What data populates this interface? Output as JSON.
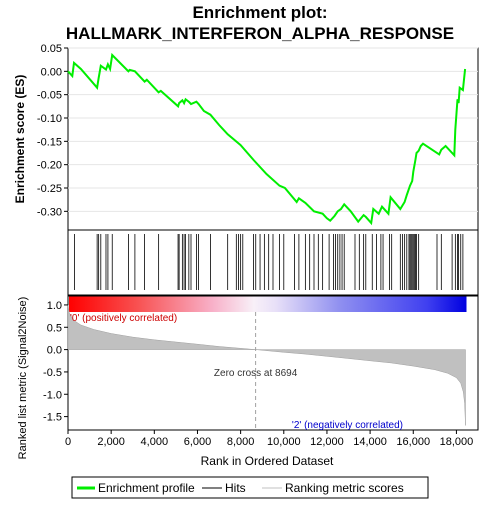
{
  "chart_data": {
    "type": "line",
    "title_line1": "Enrichment plot:",
    "title_line2": "HALLMARK_INTERFERON_ALPHA_RESPONSE",
    "es_panel": {
      "ylabel": "Enrichment score (ES)",
      "ylim": [
        -0.34,
        0.05
      ],
      "yticks": [
        0.05,
        0.0,
        -0.05,
        -0.1,
        -0.15,
        -0.2,
        -0.25,
        -0.3
      ],
      "ytick_labels": [
        "0.05",
        "0.00",
        "-0.05",
        "-0.10",
        "-0.15",
        "-0.20",
        "-0.25",
        "-0.30"
      ],
      "line_color": "#00ee00",
      "series": [
        {
          "x": 0,
          "y": 0.0
        },
        {
          "x": 200,
          "y": -0.01
        },
        {
          "x": 280,
          "y": 0.018
        },
        {
          "x": 600,
          "y": 0.005
        },
        {
          "x": 1350,
          "y": -0.035
        },
        {
          "x": 1420,
          "y": -0.015
        },
        {
          "x": 1520,
          "y": 0.012
        },
        {
          "x": 1760,
          "y": 0.004
        },
        {
          "x": 1850,
          "y": 0.015
        },
        {
          "x": 1950,
          "y": 0.005
        },
        {
          "x": 2050,
          "y": 0.035
        },
        {
          "x": 2800,
          "y": 0.0
        },
        {
          "x": 2860,
          "y": 0.003
        },
        {
          "x": 3100,
          "y": 0.0
        },
        {
          "x": 3550,
          "y": -0.022
        },
        {
          "x": 3650,
          "y": -0.018
        },
        {
          "x": 4200,
          "y": -0.045
        },
        {
          "x": 4300,
          "y": -0.042
        },
        {
          "x": 5100,
          "y": -0.075
        },
        {
          "x": 5150,
          "y": -0.068
        },
        {
          "x": 5300,
          "y": -0.062
        },
        {
          "x": 5380,
          "y": -0.068
        },
        {
          "x": 5450,
          "y": -0.06
        },
        {
          "x": 5600,
          "y": -0.065
        },
        {
          "x": 5700,
          "y": -0.07
        },
        {
          "x": 5950,
          "y": -0.065
        },
        {
          "x": 6050,
          "y": -0.07
        },
        {
          "x": 6300,
          "y": -0.085
        },
        {
          "x": 6600,
          "y": -0.093
        },
        {
          "x": 7000,
          "y": -0.115
        },
        {
          "x": 7400,
          "y": -0.135
        },
        {
          "x": 8000,
          "y": -0.158
        },
        {
          "x": 8600,
          "y": -0.19
        },
        {
          "x": 9200,
          "y": -0.22
        },
        {
          "x": 9800,
          "y": -0.245
        },
        {
          "x": 10050,
          "y": -0.25
        },
        {
          "x": 10600,
          "y": -0.28
        },
        {
          "x": 10700,
          "y": -0.272
        },
        {
          "x": 11000,
          "y": -0.282
        },
        {
          "x": 11400,
          "y": -0.3
        },
        {
          "x": 11800,
          "y": -0.305
        },
        {
          "x": 12000,
          "y": -0.315
        },
        {
          "x": 12150,
          "y": -0.32
        },
        {
          "x": 12350,
          "y": -0.31
        },
        {
          "x": 12500,
          "y": -0.3
        },
        {
          "x": 12650,
          "y": -0.295
        },
        {
          "x": 12800,
          "y": -0.285
        },
        {
          "x": 13100,
          "y": -0.3
        },
        {
          "x": 13450,
          "y": -0.322
        },
        {
          "x": 13700,
          "y": -0.308
        },
        {
          "x": 13800,
          "y": -0.312
        },
        {
          "x": 14050,
          "y": -0.325
        },
        {
          "x": 14150,
          "y": -0.295
        },
        {
          "x": 14400,
          "y": -0.305
        },
        {
          "x": 14550,
          "y": -0.29
        },
        {
          "x": 14850,
          "y": -0.305
        },
        {
          "x": 14950,
          "y": -0.27
        },
        {
          "x": 15400,
          "y": -0.295
        },
        {
          "x": 15600,
          "y": -0.28
        },
        {
          "x": 15700,
          "y": -0.265
        },
        {
          "x": 15850,
          "y": -0.245
        },
        {
          "x": 15950,
          "y": -0.235
        },
        {
          "x": 16000,
          "y": -0.215
        },
        {
          "x": 16100,
          "y": -0.19
        },
        {
          "x": 16150,
          "y": -0.175
        },
        {
          "x": 16250,
          "y": -0.17
        },
        {
          "x": 16350,
          "y": -0.16
        },
        {
          "x": 16450,
          "y": -0.155
        },
        {
          "x": 17200,
          "y": -0.178
        },
        {
          "x": 17300,
          "y": -0.168
        },
        {
          "x": 17500,
          "y": -0.16
        },
        {
          "x": 17900,
          "y": -0.18
        },
        {
          "x": 17950,
          "y": -0.125
        },
        {
          "x": 18050,
          "y": -0.06
        },
        {
          "x": 18100,
          "y": -0.068
        },
        {
          "x": 18150,
          "y": -0.035
        },
        {
          "x": 18300,
          "y": -0.04
        },
        {
          "x": 18400,
          "y": 0.005
        }
      ]
    },
    "hits": [
      300,
      1350,
      1420,
      1520,
      1760,
      1850,
      2050,
      2800,
      3100,
      3550,
      4200,
      5100,
      5150,
      5300,
      5380,
      5450,
      5600,
      5700,
      5950,
      6050,
      6600,
      7400,
      7800,
      7900,
      8000,
      8100,
      8600,
      8700,
      8900,
      9100,
      9300,
      9500,
      9800,
      10000,
      10500,
      10700,
      11000,
      11200,
      11400,
      11600,
      11800,
      12100,
      12300,
      12400,
      12500,
      12600,
      12700,
      12800,
      13300,
      13500,
      13700,
      13800,
      14100,
      14300,
      14500,
      14600,
      14900,
      15000,
      15400,
      15500,
      15600,
      15700,
      15800,
      15850,
      15900,
      15950,
      16000,
      16050,
      16100,
      16150,
      16250,
      17100,
      17300,
      17800,
      17950,
      18050,
      18100,
      18200,
      18300
    ],
    "rank_panel": {
      "ylabel": "Ranked list metric (Signal2Noise)",
      "ylim": [
        -1.8,
        1.2
      ],
      "yticks": [
        1.0,
        0.5,
        0.0,
        -0.5,
        -1.0,
        -1.5
      ],
      "ytick_labels": [
        "1.0",
        "0.5",
        "0.0",
        "-0.5",
        "-1.0",
        "-1.5"
      ],
      "metric_profile": [
        {
          "x": 0,
          "y": 1.0
        },
        {
          "x": 60,
          "y": 0.82
        },
        {
          "x": 250,
          "y": 0.66
        },
        {
          "x": 600,
          "y": 0.55
        },
        {
          "x": 1200,
          "y": 0.45
        },
        {
          "x": 2000,
          "y": 0.36
        },
        {
          "x": 3000,
          "y": 0.28
        },
        {
          "x": 4000,
          "y": 0.22
        },
        {
          "x": 5000,
          "y": 0.17
        },
        {
          "x": 6000,
          "y": 0.12
        },
        {
          "x": 7000,
          "y": 0.07
        },
        {
          "x": 8000,
          "y": 0.03
        },
        {
          "x": 8694,
          "y": 0.0
        },
        {
          "x": 10000,
          "y": -0.06
        },
        {
          "x": 11000,
          "y": -0.1
        },
        {
          "x": 12000,
          "y": -0.15
        },
        {
          "x": 13000,
          "y": -0.2
        },
        {
          "x": 14000,
          "y": -0.25
        },
        {
          "x": 15000,
          "y": -0.3
        },
        {
          "x": 16000,
          "y": -0.37
        },
        {
          "x": 17000,
          "y": -0.45
        },
        {
          "x": 17600,
          "y": -0.53
        },
        {
          "x": 18000,
          "y": -0.63
        },
        {
          "x": 18200,
          "y": -0.75
        },
        {
          "x": 18320,
          "y": -0.95
        },
        {
          "x": 18380,
          "y": -1.2
        },
        {
          "x": 18420,
          "y": -1.7
        }
      ],
      "zero_cross_label": "Zero cross at 8694",
      "zero_cross_x": 8694,
      "positive_label": "'0' (positively correlated)",
      "negative_label": "'2' (negatively correlated)"
    },
    "xaxis": {
      "xlabel": "Rank in Ordered Dataset",
      "xlim": [
        0,
        19000
      ],
      "xmax_rank": 18420,
      "xticks": [
        0,
        2000,
        4000,
        6000,
        8000,
        10000,
        12000,
        14000,
        16000,
        18000
      ],
      "xtick_labels": [
        "0",
        "2,000",
        "4,000",
        "6,000",
        "8,000",
        "10,000",
        "12,000",
        "14,000",
        "16,000",
        "18,000"
      ]
    },
    "legend": [
      {
        "label": "Enrichment profile",
        "color": "#00ee00",
        "kind": "thick-line"
      },
      {
        "label": "Hits",
        "color": "#000000",
        "kind": "thin-line"
      },
      {
        "label": "Ranking metric scores",
        "color": "#c0c0c0",
        "kind": "thin-line"
      }
    ],
    "gradient_colors": {
      "positive": "#ff0000",
      "neutral": "#ffffff",
      "negative": "#0000ff"
    }
  }
}
